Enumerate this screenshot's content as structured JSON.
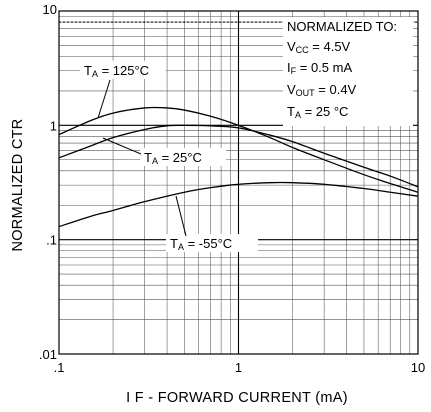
{
  "chart_data": {
    "type": "line",
    "xlabel": "I F - FORWARD CURRENT (mA)",
    "ylabel": "NORMALIZED  CTR",
    "xscale": "log",
    "yscale": "log",
    "xlim": [
      0.1,
      10
    ],
    "ylim": [
      0.01,
      10
    ],
    "grid": true,
    "x_tick_labels": [
      ".1",
      "1",
      "10"
    ],
    "y_tick_labels": [
      ".01",
      ".1",
      "1",
      "10"
    ],
    "reference_line": {
      "y": 8,
      "style": "dotted"
    },
    "conditions": {
      "title": "NORMALIZED TO:",
      "lines": [
        {
          "main": "V",
          "sub": "CC",
          "rest": " = 4.5V"
        },
        {
          "main": "I",
          "sub": "F",
          "rest": " = 0.5 mA"
        },
        {
          "main": "V",
          "sub": "OUT",
          "rest": " = 0.4V"
        },
        {
          "main": "T",
          "sub": "A",
          "rest": " = 25 °C"
        }
      ]
    },
    "series": [
      {
        "label_main": "T",
        "label_sub": "A",
        "label_rest": "  = 125°C",
        "x": [
          0.1,
          0.15,
          0.2,
          0.3,
          0.4,
          0.5,
          0.7,
          1.0,
          1.5,
          2,
          3,
          5,
          7,
          10
        ],
        "y": [
          0.83,
          1.1,
          1.28,
          1.42,
          1.42,
          1.36,
          1.2,
          1.0,
          0.78,
          0.64,
          0.5,
          0.37,
          0.31,
          0.26
        ]
      },
      {
        "label_main": "T",
        "label_sub": "A",
        "label_rest": " = 25°C",
        "x": [
          0.1,
          0.15,
          0.2,
          0.3,
          0.4,
          0.5,
          0.7,
          1.0,
          1.5,
          2,
          3,
          5,
          7,
          10
        ],
        "y": [
          0.52,
          0.66,
          0.78,
          0.92,
          0.99,
          1.0,
          0.99,
          0.95,
          0.82,
          0.72,
          0.57,
          0.43,
          0.36,
          0.29
        ]
      },
      {
        "label_main": "T",
        "label_sub": "A",
        "label_rest": " = -55°C",
        "x": [
          0.1,
          0.15,
          0.2,
          0.3,
          0.5,
          0.7,
          1.0,
          1.5,
          2,
          3,
          5,
          7,
          10
        ],
        "y": [
          0.13,
          0.16,
          0.18,
          0.215,
          0.26,
          0.285,
          0.305,
          0.315,
          0.315,
          0.305,
          0.28,
          0.26,
          0.24
        ]
      }
    ]
  }
}
